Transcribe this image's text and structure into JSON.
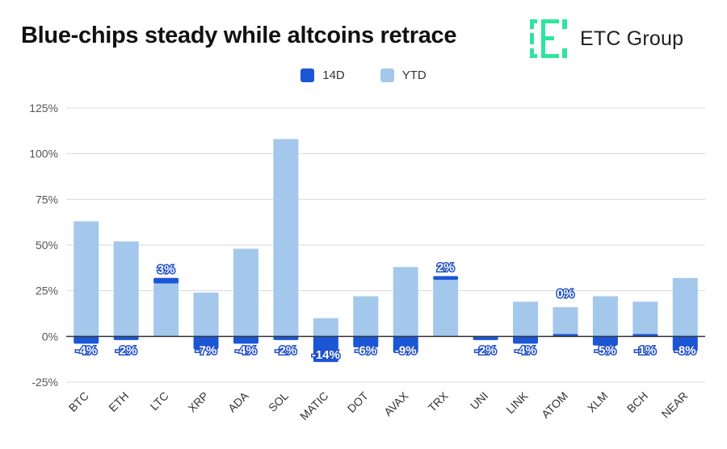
{
  "header": {
    "title": "Blue-chips steady while altcoins retrace",
    "brand_name": "ETC Group",
    "brand_color": "#2ee59d"
  },
  "colors": {
    "series_14d": "#1a56d6",
    "series_ytd": "#a4c8ec",
    "grid": "#d9d9d9",
    "axis": "#333333",
    "tick_text": "#555555",
    "label_text": "#ffffff",
    "label_outline": "#2250c8"
  },
  "chart_data": {
    "type": "bar",
    "title": "Blue-chips steady while altcoins retrace",
    "xlabel": "",
    "ylabel": "",
    "ylim": [
      -25,
      125
    ],
    "yticks": [
      -25,
      0,
      25,
      50,
      75,
      100,
      125
    ],
    "ytick_labels": [
      "-25%",
      "0%",
      "25%",
      "50%",
      "75%",
      "100%",
      "125%"
    ],
    "grid": true,
    "legend_position": "top-center",
    "categories": [
      "BTC",
      "ETH",
      "LTC",
      "XRP",
      "ADA",
      "SOL",
      "MATIC",
      "DOT",
      "AVAX",
      "TRX",
      "UNI",
      "LINK",
      "ATOM",
      "XLM",
      "BCH",
      "NEAR"
    ],
    "series": [
      {
        "name": "14D",
        "values": [
          -4,
          -2,
          3,
          -7,
          -4,
          -2,
          -14,
          -6,
          -9,
          2,
          -2,
          -4,
          0,
          -5,
          -1,
          -8
        ],
        "labels": [
          "-4%",
          "-2%",
          "3%",
          "-7%",
          "-4%",
          "-2%",
          "-14%",
          "-6%",
          "-9%",
          "2%",
          "-2%",
          "-4%",
          "0%",
          "-5%",
          "-1%",
          "-8%"
        ]
      },
      {
        "name": "YTD",
        "values": [
          63,
          52,
          29,
          24,
          48,
          108,
          10,
          22,
          38,
          31,
          -2,
          19,
          16,
          22,
          19,
          32
        ]
      }
    ]
  }
}
